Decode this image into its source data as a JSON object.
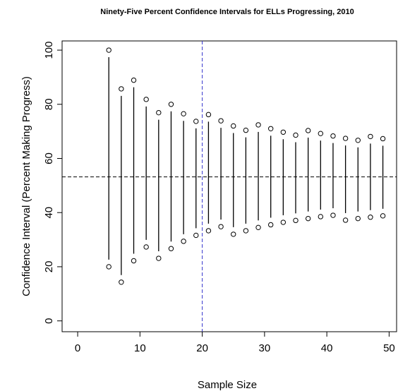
{
  "chart_data": {
    "type": "interval",
    "title": "Ninety-Five Percent Confidence Intervals for ELLs Progressing, 2010",
    "x_label": "Sample Size",
    "y_label": "Confidence Interval (Percent Making Progress)",
    "x": [
      5,
      7,
      9,
      11,
      13,
      15,
      17,
      19,
      21,
      23,
      25,
      27,
      29,
      31,
      33,
      35,
      37,
      39,
      41,
      43,
      45,
      47,
      49
    ],
    "upper": [
      100,
      85.7,
      88.9,
      81.8,
      76.9,
      80,
      76.5,
      73.7,
      76.2,
      73.9,
      72,
      70.4,
      72.4,
      71,
      69.7,
      68.6,
      70.3,
      69.2,
      68.3,
      67.4,
      66.7,
      68.1,
      67.3
    ],
    "lower": [
      20,
      14.3,
      22.2,
      27.3,
      23.1,
      26.7,
      29.4,
      31.6,
      33.3,
      34.8,
      32,
      33.3,
      34.5,
      35.5,
      36.4,
      37.1,
      37.8,
      38.5,
      39,
      37.2,
      37.8,
      38.3,
      38.8
    ],
    "hline": 53.2,
    "hline_color": "#000000",
    "vline": 20,
    "vline_color": "#3333cc",
    "color": "#000000",
    "xlim": [
      -2.5,
      51.2
    ],
    "ylim": [
      -4,
      103.4
    ],
    "xticks": [
      0,
      10,
      20,
      30,
      40,
      50
    ],
    "yticks": [
      0,
      20,
      40,
      60,
      80,
      100
    ]
  }
}
